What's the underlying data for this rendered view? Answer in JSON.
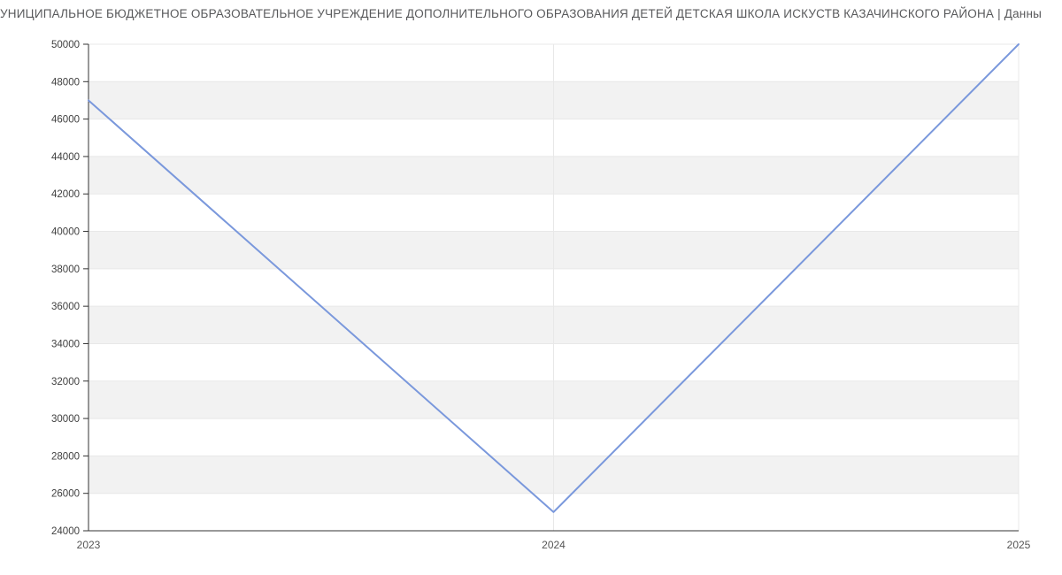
{
  "chart_data": {
    "type": "line",
    "title": "УНИЦИПАЛЬНОЕ БЮДЖЕТНОЕ ОБРАЗОВАТЕЛЬНОЕ УЧРЕЖДЕНИЕ ДОПОЛНИТЕЛЬНОГО ОБРАЗОВАНИЯ ДЕТЕЙ ДЕТСКАЯ ШКОЛА ИСКУСТВ КАЗАЧИНСКОГО РАЙОНА | Данны",
    "xlabel": "",
    "ylabel": "",
    "x_labels": [
      "2023",
      "2024",
      "2025"
    ],
    "x": [
      2023,
      2024,
      2025
    ],
    "series": [
      {
        "values": [
          47000,
          25000,
          50000
        ],
        "color": "#7a98dc"
      }
    ],
    "ylim": [
      24000,
      50000
    ],
    "ytick_step": 2000,
    "y_ticks": [
      24000,
      26000,
      28000,
      30000,
      32000,
      34000,
      36000,
      38000,
      40000,
      42000,
      44000,
      46000,
      48000,
      50000
    ],
    "legend": "none",
    "grid": true,
    "colors": {
      "title": "#58595b",
      "band_fill": "#f2f2f2",
      "gridline": "#e8e8e8",
      "axis": "#333333",
      "y_tick_label": "#404040",
      "x_tick_label": "#555555",
      "background": "#ffffff"
    }
  }
}
